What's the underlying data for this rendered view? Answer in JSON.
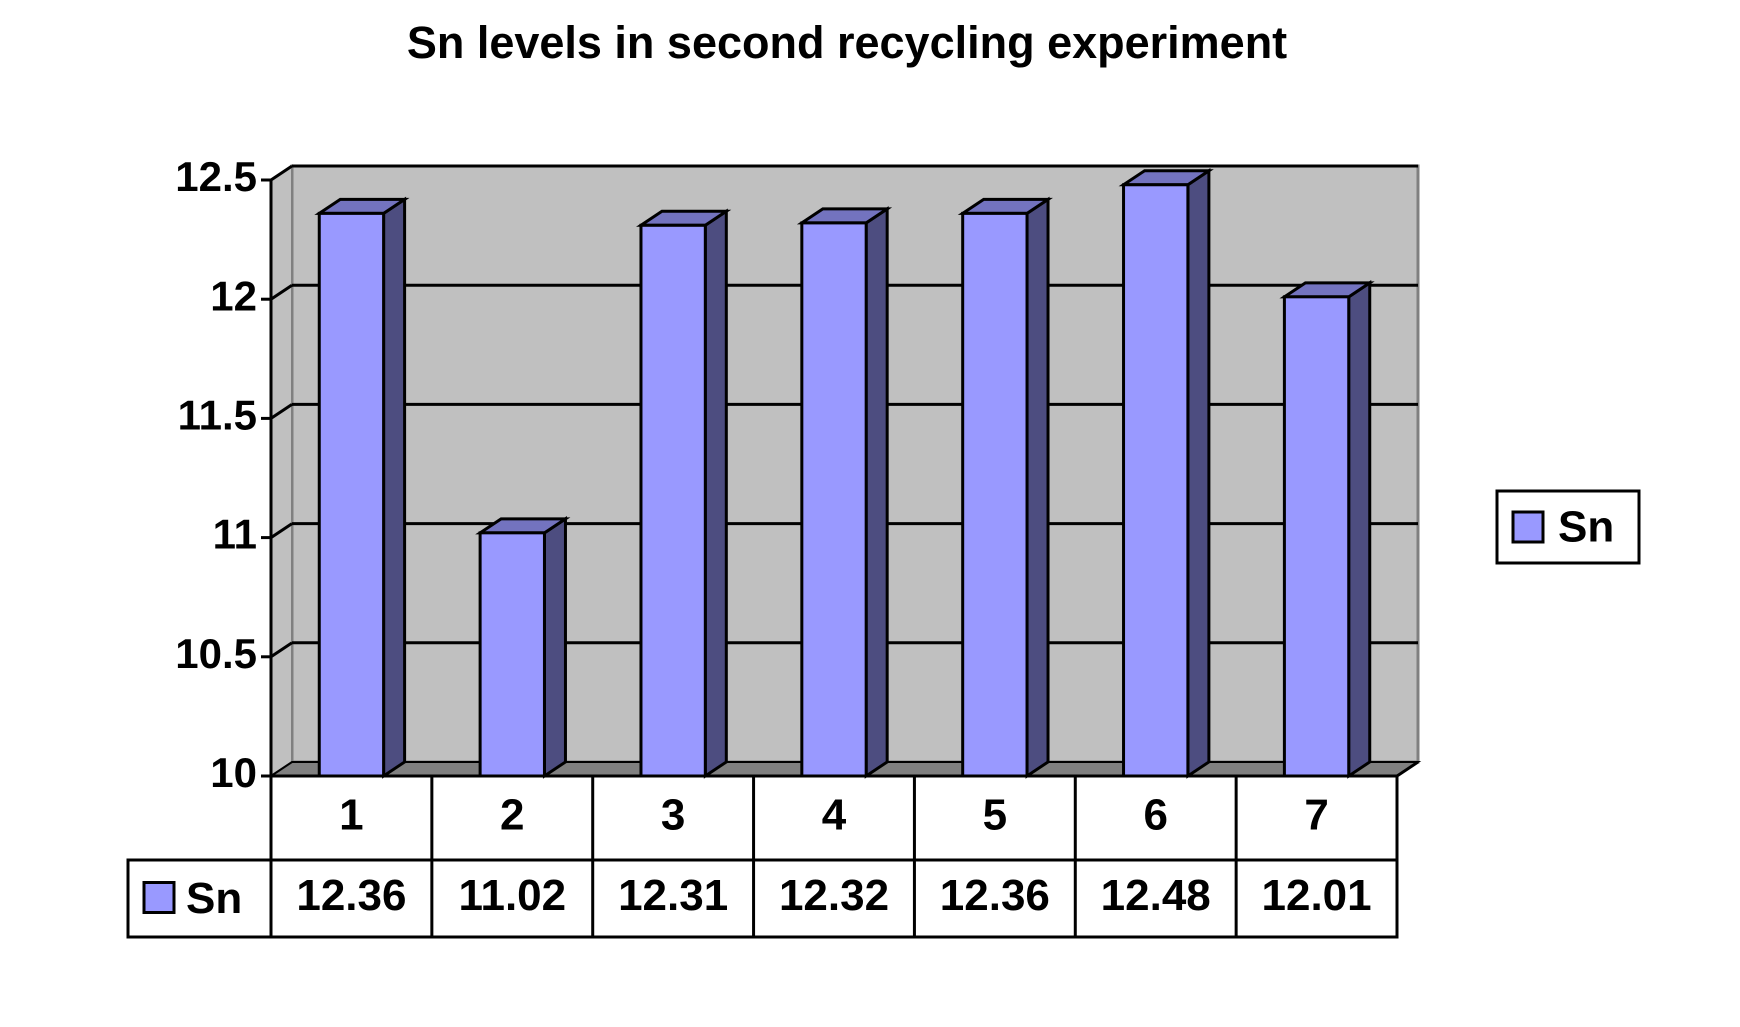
{
  "chart_data": {
    "type": "bar3d",
    "title": "Sn levels in second recycling experiment",
    "categories": [
      "1",
      "2",
      "3",
      "4",
      "5",
      "6",
      "7"
    ],
    "series": [
      {
        "name": "Sn",
        "color": "#9999ff",
        "values": [
          12.36,
          11.02,
          12.31,
          12.32,
          12.36,
          12.48,
          12.01
        ]
      }
    ],
    "ylim": [
      10,
      12.5
    ],
    "yticks": [
      10,
      10.5,
      11,
      11.5,
      12,
      12.5
    ],
    "grid": true,
    "legend": "right",
    "data_table": true
  }
}
